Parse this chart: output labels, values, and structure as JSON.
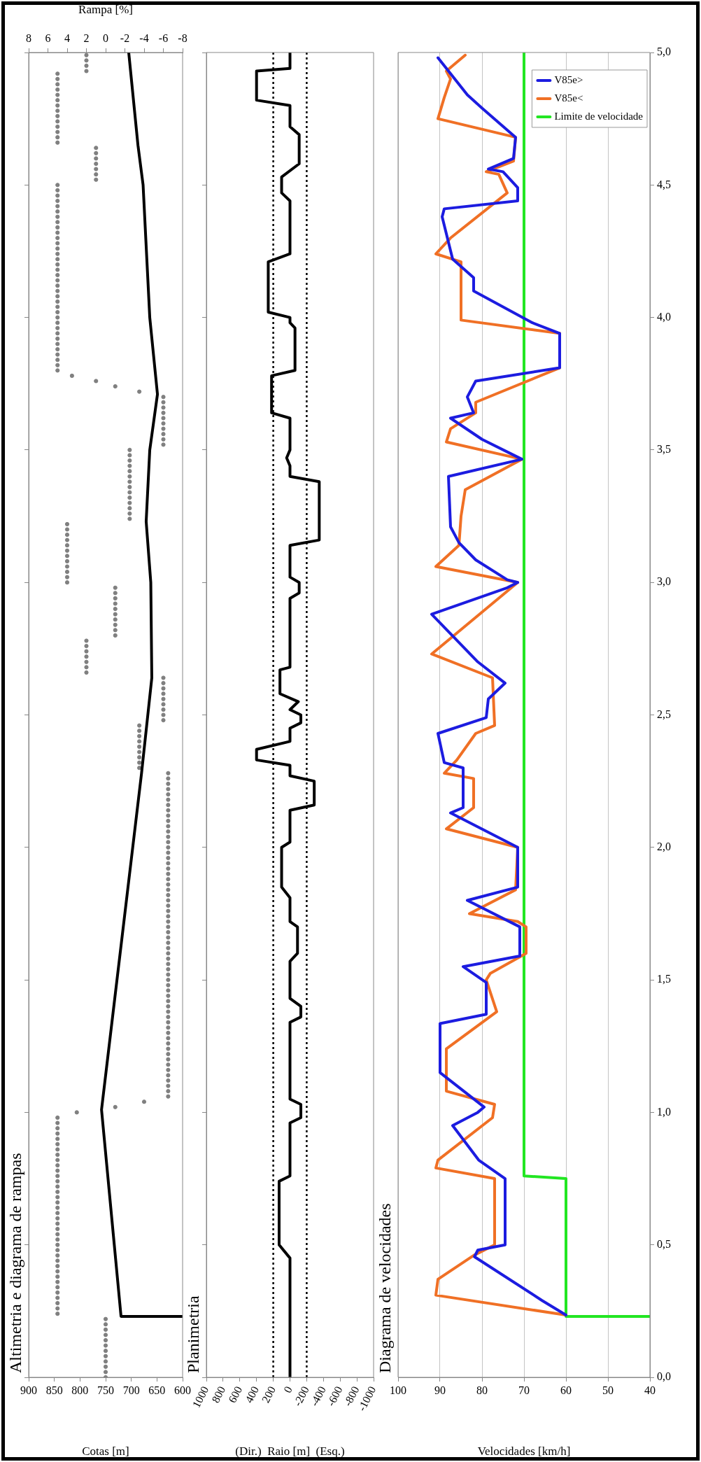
{
  "chart_data": [
    {
      "type": "line",
      "title": "Altimetria e diagrama de rampas",
      "xlabel": "Cotas [m]",
      "x2label": "Rampa [%]",
      "ylim": [
        0,
        5
      ],
      "yticks": [
        {
          "value": 0,
          "label": null
        },
        {
          "value": 0.5,
          "label": null
        },
        {
          "value": 1,
          "label": null
        },
        {
          "value": 1.5,
          "label": null
        },
        {
          "value": 2,
          "label": null
        },
        {
          "value": 2.5,
          "label": null
        },
        {
          "value": 3,
          "label": null
        },
        {
          "value": 3.5,
          "label": null
        },
        {
          "value": 4,
          "label": null
        },
        {
          "value": 4.5,
          "label": null
        },
        {
          "value": 5,
          "label": null
        }
      ],
      "xlim": [
        900,
        600
      ],
      "xticks": [
        600,
        650,
        700,
        750,
        800,
        850,
        900
      ],
      "x2lim": [
        8,
        -8
      ],
      "x2ticks": [
        -8,
        -6,
        -4,
        -2,
        0,
        2,
        4,
        6,
        8
      ],
      "grid": false,
      "tick_labels": "x",
      "series": [
        {
          "type": "line",
          "color": "#000000",
          "values": [
            0.23,
            0.23,
            1.01,
            2.28,
            2.46,
            2.64,
            3.0,
            3.23,
            3.5,
            3.71,
            4.0,
            4.5,
            4.65,
            5.0
          ],
          "x": [
            600,
            720,
            758,
            680,
            670,
            660,
            662,
            671,
            664,
            649,
            664,
            677,
            687,
            705
          ]
        },
        {
          "type": "scatter",
          "axis": "x2",
          "marker": "circle",
          "color": "#808080",
          "values": [
            0,
            0.02,
            0.04,
            0.06,
            0.08,
            0.1,
            0.12,
            0.14,
            0.16,
            0.18,
            0.2,
            0.22
          ],
          "x": [
            0,
            0,
            0,
            0,
            0,
            0,
            0,
            0,
            0,
            0,
            0,
            0
          ]
        },
        {
          "type": "scatter",
          "axis": "x2",
          "marker": "circle",
          "color": "#808080",
          "values": [
            0.24,
            0.26,
            0.28,
            0.3,
            0.32,
            0.34,
            0.36,
            0.38,
            0.4,
            0.42,
            0.44,
            0.46,
            0.48,
            0.5,
            0.52,
            0.54,
            0.56,
            0.58,
            0.6,
            0.62,
            0.64,
            0.66,
            0.68,
            0.7,
            0.72,
            0.74,
            0.76,
            0.78,
            0.8,
            0.82,
            0.84,
            0.86,
            0.88,
            0.9,
            0.92,
            0.94,
            0.96,
            0.98
          ],
          "x": [
            5,
            5,
            5,
            5,
            5,
            5,
            5,
            5,
            5,
            5,
            5,
            5,
            5,
            5,
            5,
            5,
            5,
            5,
            5,
            5,
            5,
            5,
            5,
            5,
            5,
            5,
            5,
            5,
            5,
            5,
            5,
            5,
            5,
            5,
            5,
            5,
            5,
            5
          ]
        },
        {
          "type": "scatter",
          "axis": "x2",
          "marker": "circle",
          "color": "#808080",
          "values": [
            1,
            1.02,
            1.04
          ],
          "x": [
            3,
            -1,
            -4
          ]
        },
        {
          "type": "scatter",
          "axis": "x2",
          "marker": "circle",
          "color": "#808080",
          "values": [
            1.06,
            1.08,
            1.1,
            1.12,
            1.14,
            1.16,
            1.18,
            1.2,
            1.22,
            1.24,
            1.26,
            1.28,
            1.3,
            1.32,
            1.34,
            1.36,
            1.38,
            1.4,
            1.42,
            1.44,
            1.46,
            1.48,
            1.5,
            1.52,
            1.54,
            1.56,
            1.58,
            1.6,
            1.62,
            1.64,
            1.66,
            1.68,
            1.7,
            1.72,
            1.74,
            1.76,
            1.78,
            1.8,
            1.82,
            1.84,
            1.86,
            1.88,
            1.9,
            1.92,
            1.94,
            1.96,
            1.98,
            2,
            2.02,
            2.04,
            2.06,
            2.08,
            2.1,
            2.12,
            2.14,
            2.16,
            2.18,
            2.2,
            2.22,
            2.24,
            2.26,
            2.28
          ],
          "x": [
            -6.5,
            -6.5,
            -6.5,
            -6.5,
            -6.5,
            -6.5,
            -6.5,
            -6.5,
            -6.5,
            -6.5,
            -6.5,
            -6.5,
            -6.5,
            -6.5,
            -6.5,
            -6.5,
            -6.5,
            -6.5,
            -6.5,
            -6.5,
            -6.5,
            -6.5,
            -6.5,
            -6.5,
            -6.5,
            -6.5,
            -6.5,
            -6.5,
            -6.5,
            -6.5,
            -6.5,
            -6.5,
            -6.5,
            -6.5,
            -6.5,
            -6.5,
            -6.5,
            -6.5,
            -6.5,
            -6.5,
            -6.5,
            -6.5,
            -6.5,
            -6.5,
            -6.5,
            -6.5,
            -6.5,
            -6.5,
            -6.5,
            -6.5,
            -6.5,
            -6.5,
            -6.5,
            -6.5,
            -6.5,
            -6.5,
            -6.5,
            -6.5,
            -6.5,
            -6.5,
            -6.5,
            -6.5
          ]
        },
        {
          "type": "scatter",
          "axis": "x2",
          "marker": "circle",
          "color": "#808080",
          "values": [
            2.3,
            2.32,
            2.34,
            2.36,
            2.38,
            2.4,
            2.42,
            2.44,
            2.46
          ],
          "x": [
            -3.5,
            -3.5,
            -3.5,
            -3.5,
            -3.5,
            -3.5,
            -3.5,
            -3.5,
            -3.5
          ]
        },
        {
          "type": "scatter",
          "axis": "x2",
          "marker": "circle",
          "color": "#808080",
          "values": [
            2.48,
            2.5,
            2.52,
            2.54,
            2.56,
            2.58,
            2.6,
            2.62,
            2.64
          ],
          "x": [
            -6,
            -6,
            -6,
            -6,
            -6,
            -6,
            -6,
            -6,
            -6
          ]
        },
        {
          "type": "scatter",
          "axis": "x2",
          "marker": "circle",
          "color": "#808080",
          "values": [
            2.66,
            2.68,
            2.7,
            2.72,
            2.74,
            2.76,
            2.78
          ],
          "x": [
            2,
            2,
            2,
            2,
            2,
            2,
            2
          ]
        },
        {
          "type": "scatter",
          "axis": "x2",
          "marker": "circle",
          "color": "#808080",
          "values": [
            2.8,
            2.82,
            2.84,
            2.86,
            2.88,
            2.9,
            2.92,
            2.94,
            2.96,
            2.98
          ],
          "x": [
            -1,
            -1,
            -1,
            -1,
            -1,
            -1,
            -1,
            -1,
            -1,
            -1
          ]
        },
        {
          "type": "scatter",
          "axis": "x2",
          "marker": "circle",
          "color": "#808080",
          "values": [
            3,
            3.02,
            3.04,
            3.06,
            3.08,
            3.1,
            3.12,
            3.14,
            3.16,
            3.18,
            3.2,
            3.22
          ],
          "x": [
            4,
            4,
            4,
            4,
            4,
            4,
            4,
            4,
            4,
            4,
            4,
            4
          ]
        },
        {
          "type": "scatter",
          "axis": "x2",
          "marker": "circle",
          "color": "#808080",
          "values": [
            3.24,
            3.26,
            3.28,
            3.3,
            3.32,
            3.34,
            3.36,
            3.38,
            3.4,
            3.42,
            3.44,
            3.46,
            3.48,
            3.5
          ],
          "x": [
            -2.5,
            -2.5,
            -2.5,
            -2.5,
            -2.5,
            -2.5,
            -2.5,
            -2.5,
            -2.5,
            -2.5,
            -2.5,
            -2.5,
            -2.5,
            -2.5
          ]
        },
        {
          "type": "scatter",
          "axis": "x2",
          "marker": "circle",
          "color": "#808080",
          "values": [
            3.52,
            3.54,
            3.56,
            3.58,
            3.6,
            3.62,
            3.64,
            3.66,
            3.68,
            3.7
          ],
          "x": [
            -6,
            -6,
            -6,
            -6,
            -6,
            -6,
            -6,
            -6,
            -6,
            -6
          ]
        },
        {
          "type": "scatter",
          "axis": "x2",
          "marker": "circle",
          "color": "#808080",
          "values": [
            3.72,
            3.74,
            3.76,
            3.78
          ],
          "x": [
            -3.5,
            -1,
            1,
            3.5
          ]
        },
        {
          "type": "scatter",
          "axis": "x2",
          "marker": "circle",
          "color": "#808080",
          "values": [
            3.8,
            3.82,
            3.84,
            3.86,
            3.88,
            3.9,
            3.92,
            3.94,
            3.96,
            3.98,
            4,
            4.02,
            4.04,
            4.06,
            4.08,
            4.1,
            4.12,
            4.14,
            4.16,
            4.18,
            4.2,
            4.22,
            4.24,
            4.26,
            4.28,
            4.3,
            4.32,
            4.34,
            4.36,
            4.38,
            4.4,
            4.42,
            4.44,
            4.46,
            4.48,
            4.5
          ],
          "x": [
            5,
            5,
            5,
            5,
            5,
            5,
            5,
            5,
            5,
            5,
            5,
            5,
            5,
            5,
            5,
            5,
            5,
            5,
            5,
            5,
            5,
            5,
            5,
            5,
            5,
            5,
            5,
            5,
            5,
            5,
            5,
            5,
            5,
            5,
            5,
            5
          ]
        },
        {
          "type": "scatter",
          "axis": "x2",
          "marker": "circle",
          "color": "#808080",
          "values": [
            4.52,
            4.54,
            4.56,
            4.58,
            4.6,
            4.62,
            4.64
          ],
          "x": [
            1,
            1,
            1,
            1,
            1,
            1,
            1
          ]
        },
        {
          "type": "scatter",
          "axis": "x2",
          "marker": "circle",
          "color": "#808080",
          "values": [
            4.66,
            4.68,
            4.7,
            4.72,
            4.74,
            4.76,
            4.78,
            4.8,
            4.82,
            4.84,
            4.86,
            4.88,
            4.9,
            4.92
          ],
          "x": [
            5,
            5,
            5,
            5,
            5,
            5,
            5,
            5,
            5,
            5,
            5,
            5,
            5,
            5
          ]
        },
        {
          "type": "scatter",
          "axis": "x2",
          "marker": "circle",
          "color": "#808080",
          "values": [
            4.93,
            4.95,
            4.97,
            4.99
          ],
          "x": [
            2,
            2,
            2,
            2
          ]
        }
      ]
    },
    {
      "type": "line",
      "title": "Planimetria",
      "xlabel": "(Dir.)  Raio [m]  (Esq.)",
      "ylim": [
        0,
        5
      ],
      "yticks": [
        {
          "value": 0,
          "label": null
        },
        {
          "value": 0.5,
          "label": null
        },
        {
          "value": 1,
          "label": null
        },
        {
          "value": 1.5,
          "label": null
        },
        {
          "value": 2,
          "label": null
        },
        {
          "value": 2.5,
          "label": null
        },
        {
          "value": 3,
          "label": null
        },
        {
          "value": 3.5,
          "label": null
        },
        {
          "value": 4,
          "label": null
        },
        {
          "value": 4.5,
          "label": null
        },
        {
          "value": 5,
          "label": null
        }
      ],
      "xlim": [
        1000,
        -1000
      ],
      "xticks": [
        -1000,
        -800,
        -600,
        -400,
        -200,
        0,
        200,
        400,
        600,
        800,
        1000
      ],
      "grid": false,
      "tick_labels": "x",
      "ref_lines": [
        {
          "axis": "x",
          "value": 200,
          "line_style": "dotted",
          "color": "#000000"
        },
        {
          "axis": "x",
          "value": -200,
          "line_style": "dotted",
          "color": "#000000"
        }
      ],
      "series": [
        {
          "color": "#000000",
          "values": [
            0,
            0.45,
            0.5,
            0.74,
            0.76,
            0.96,
            0.98,
            1.03,
            1.05,
            1.34,
            1.36,
            1.4,
            1.43,
            1.57,
            1.6,
            1.7,
            1.72,
            1.81,
            1.85,
            2.0,
            2.02,
            2.14,
            2.16,
            2.25,
            2.27,
            2.31,
            2.33,
            2.37,
            2.4,
            2.45,
            2.47,
            2.5,
            2.52,
            2.55,
            2.58,
            2.67,
            2.68,
            2.94,
            2.96,
            3.0,
            3.02,
            3.14,
            3.16,
            3.38,
            3.4,
            3.44,
            3.47,
            3.5,
            3.62,
            3.64,
            3.78,
            3.8,
            3.96,
            3.98,
            4.0,
            4.02,
            4.21,
            4.24,
            4.44,
            4.47,
            4.53,
            4.58,
            4.69,
            4.72,
            4.8,
            4.82,
            4.93,
            4.94,
            5.0
          ],
          "x": [
            0,
            0,
            130,
            130,
            0,
            0,
            -130,
            -130,
            0,
            0,
            -130,
            -130,
            0,
            0,
            -90,
            -90,
            0,
            0,
            100,
            100,
            0,
            0,
            -290,
            -290,
            0,
            0,
            400,
            400,
            0,
            0,
            -130,
            -130,
            0,
            -100,
            120,
            120,
            0,
            0,
            -110,
            -110,
            0,
            0,
            -350,
            -350,
            0,
            0,
            40,
            0,
            0,
            220,
            220,
            -60,
            -60,
            0,
            0,
            260,
            260,
            0,
            0,
            100,
            100,
            -110,
            -110,
            0,
            0,
            400,
            400,
            0,
            0
          ]
        }
      ]
    },
    {
      "type": "line",
      "title": "Diagrama de velocidades",
      "xlabel": "Velocidades [km/h]",
      "ylim": [
        0,
        5
      ],
      "yticks": [
        {
          "value": 0,
          "label": "0,0"
        },
        {
          "value": 0.5,
          "label": "0,5"
        },
        {
          "value": 1,
          "label": "1,0"
        },
        {
          "value": 1.5,
          "label": "1,5"
        },
        {
          "value": 2,
          "label": "2,0"
        },
        {
          "value": 2.5,
          "label": "2,5"
        },
        {
          "value": 3,
          "label": "3,0"
        },
        {
          "value": 3.5,
          "label": "3,5"
        },
        {
          "value": 4,
          "label": "4,0"
        },
        {
          "value": 4.5,
          "label": "4,5"
        },
        {
          "value": 5,
          "label": "5,0"
        }
      ],
      "xlim": [
        100,
        40
      ],
      "xticks": [
        40,
        50,
        60,
        70,
        80,
        90,
        100
      ],
      "grid": "x",
      "legend": "top right",
      "series": [
        {
          "name": "V85e>",
          "color": "#1c1ce0",
          "values": [
            0.235,
            0.29,
            0.455,
            0.48,
            0.5,
            0.75,
            0.82,
            0.95,
            1.0,
            1.02,
            1.15,
            1.335,
            1.37,
            1.49,
            1.55,
            1.59,
            1.7,
            1.8,
            1.85,
            2.0,
            2.13,
            2.15,
            2.3,
            2.32,
            2.43,
            2.49,
            2.56,
            2.62,
            2.7,
            2.88,
            2.98,
            3.0,
            3.01,
            3.085,
            3.15,
            3.21,
            3.4,
            3.465,
            3.54,
            3.62,
            3.64,
            3.7,
            3.76,
            3.81,
            3.94,
            3.98,
            4.1,
            4.15,
            4.22,
            4.38,
            4.41,
            4.44,
            4.49,
            4.55,
            4.56,
            4.6,
            4.68,
            4.79,
            4.84,
            4.98
          ],
          "x": [
            60,
            65.7,
            81.8,
            81,
            74.5,
            74.5,
            80.8,
            87,
            81,
            79.5,
            90,
            90,
            79,
            79,
            84.5,
            71,
            71,
            83.5,
            71.5,
            71.5,
            87.5,
            84.5,
            84.5,
            89,
            90.5,
            79,
            78.5,
            74.5,
            81,
            92,
            74,
            71.5,
            74,
            81.5,
            85.5,
            87.5,
            88,
            70.5,
            80,
            87.5,
            82,
            83.5,
            81.5,
            61.5,
            61.5,
            68,
            82,
            82,
            87,
            89.5,
            89,
            71.5,
            71.5,
            75,
            78.5,
            72.5,
            72,
            80,
            83.5,
            90.5
          ]
        },
        {
          "name": "V85e<",
          "color": "#f07025",
          "values": [
            0.235,
            0.31,
            0.37,
            0.46,
            0.5,
            0.75,
            0.79,
            0.82,
            0.98,
            1.03,
            1.08,
            1.24,
            1.38,
            1.5,
            1.525,
            1.6,
            1.7,
            1.72,
            1.75,
            1.84,
            2.0,
            2.07,
            2.15,
            2.26,
            2.28,
            2.33,
            2.43,
            2.46,
            2.64,
            2.73,
            3.0,
            3.06,
            3.14,
            3.25,
            3.35,
            3.465,
            3.53,
            3.58,
            3.64,
            3.68,
            3.81,
            3.94,
            3.99,
            4.21,
            4.24,
            4.3,
            4.47,
            4.54,
            4.55,
            4.59,
            4.68,
            4.75,
            4.83,
            4.9,
            4.93,
            4.99
          ],
          "x": [
            60,
            91,
            90.5,
            82,
            77,
            77,
            91,
            90.5,
            77.5,
            77,
            88.5,
            88.5,
            76.5,
            79,
            78,
            69.5,
            69.5,
            71.5,
            83,
            72,
            71.5,
            88.5,
            82,
            82,
            89,
            86,
            81.5,
            77,
            77.5,
            92,
            71.5,
            91,
            85.5,
            85,
            84,
            70.5,
            88.5,
            87.5,
            81.5,
            81.5,
            61.5,
            61.5,
            85,
            85,
            91,
            87.5,
            74,
            76,
            79,
            72.5,
            72,
            90.5,
            89,
            87.5,
            88.5,
            84
          ]
        },
        {
          "name": "Limite de velocidade",
          "color": "#22e622",
          "values": [
            0.23,
            0.23,
            0.75,
            0.76,
            5.0
          ],
          "x": [
            40,
            60,
            60,
            70,
            70
          ]
        }
      ]
    }
  ]
}
